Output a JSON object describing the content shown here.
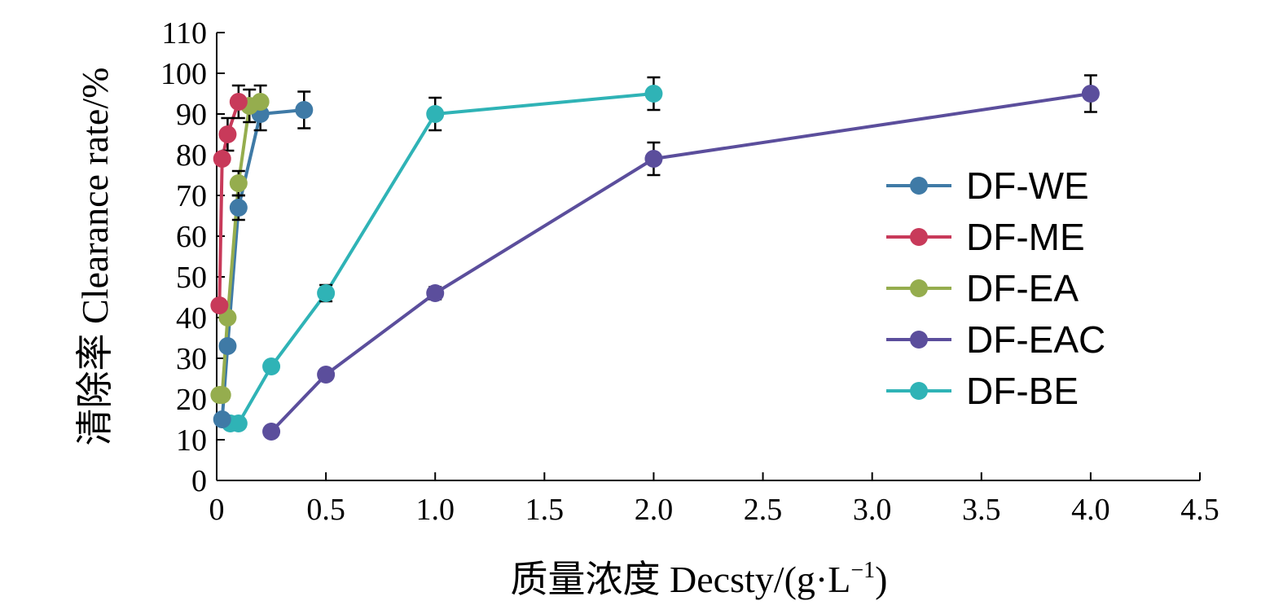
{
  "chart_data": {
    "type": "line",
    "title": "",
    "xlabel": "质量浓度 Decsty/(g·L",
    "xlabel_sup": "−1",
    "xlabel_close": ")",
    "ylabel": "清除率 Clearance rate/%",
    "xlim": [
      0,
      4.5
    ],
    "ylim": [
      0,
      110
    ],
    "xticks": [
      0,
      0.5,
      1.0,
      1.5,
      2.0,
      2.5,
      3.0,
      3.5,
      4.0,
      4.5
    ],
    "xtick_labels": [
      "0",
      "0.5",
      "1.0",
      "1.5",
      "2.0",
      "2.5",
      "3.0",
      "3.5",
      "4.0",
      "4.5"
    ],
    "yticks": [
      0,
      10,
      20,
      30,
      40,
      50,
      60,
      70,
      80,
      90,
      100,
      110
    ],
    "ytick_labels": [
      "0",
      "10",
      "20",
      "30",
      "40",
      "50",
      "60",
      "70",
      "80",
      "90",
      "100",
      "110"
    ],
    "grid": false,
    "legend_position": "right",
    "series": [
      {
        "name": "DF-WE",
        "color": "#3f7aa6",
        "x": [
          0.025,
          0.05,
          0.1,
          0.2,
          0.4
        ],
        "y": [
          15,
          33,
          67,
          90,
          91
        ],
        "err": [
          0,
          0,
          3,
          4,
          4.5
        ]
      },
      {
        "name": "DF-ME",
        "color": "#c83a5a",
        "x": [
          0.0125,
          0.025,
          0.05,
          0.1
        ],
        "y": [
          43,
          79,
          85,
          93
        ],
        "err": [
          0,
          0,
          4,
          4
        ]
      },
      {
        "name": "DF-EA",
        "color": "#95ad4e",
        "x": [
          0.0125,
          0.025,
          0.05,
          0.1,
          0.15,
          0.2
        ],
        "y": [
          21,
          21,
          40,
          73,
          92,
          93
        ],
        "err": [
          0,
          0,
          0,
          3,
          4,
          4
        ]
      },
      {
        "name": "DF-EAC",
        "color": "#5b4e9c",
        "x": [
          0.25,
          0.5,
          1.0,
          2.0,
          4.0
        ],
        "y": [
          12,
          26,
          46,
          79,
          95
        ],
        "err": [
          0,
          0,
          1.5,
          4,
          4.5
        ]
      },
      {
        "name": "DF-BE",
        "color": "#2fb3b6",
        "x": [
          0.0625,
          0.1,
          0.25,
          0.5,
          1.0,
          2.0
        ],
        "y": [
          14,
          14,
          28,
          46,
          90,
          95
        ],
        "err": [
          0,
          0,
          0,
          2,
          4,
          4
        ]
      }
    ]
  }
}
